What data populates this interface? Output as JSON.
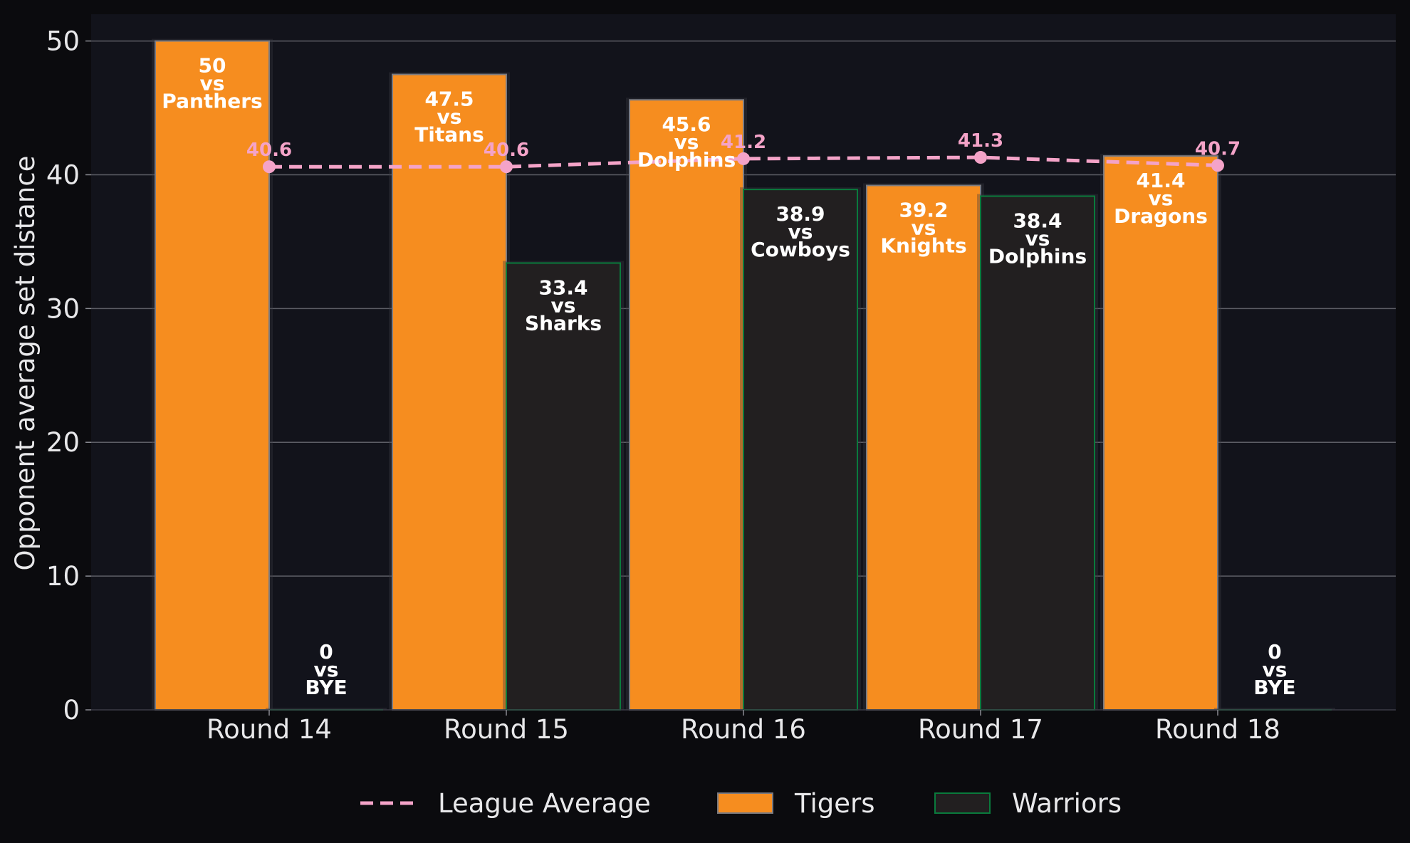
{
  "chart_data": {
    "type": "bar",
    "title": "",
    "xlabel": "",
    "ylabel": "Opponent average set distance",
    "ylim": [
      0,
      52
    ],
    "yticks": [
      0,
      10,
      20,
      30,
      40,
      50
    ],
    "categories": [
      "Round 14",
      "Round 15",
      "Round 16",
      "Round 17",
      "Round 18"
    ],
    "series": [
      {
        "name": "Tigers",
        "color": "#f68d1f",
        "edge": "#7a7a80",
        "values": [
          50,
          47.5,
          45.6,
          39.2,
          41.4
        ],
        "opponents": [
          "Panthers",
          "Titans",
          "Dolphins",
          "Knights",
          "Dragons"
        ]
      },
      {
        "name": "Warriors",
        "color": "#221f20",
        "edge": "#0a7a3c",
        "values": [
          0,
          33.4,
          38.9,
          38.4,
          0
        ],
        "opponents": [
          "BYE",
          "Sharks",
          "Cowboys",
          "Dolphins",
          "BYE"
        ]
      }
    ],
    "league_average": {
      "name": "League Average",
      "color": "#f4a3c8",
      "style": "dashed",
      "values": [
        40.6,
        40.6,
        41.2,
        41.3,
        40.7
      ]
    },
    "vs_word": "vs",
    "grid": true,
    "legend_position": "bottom-center"
  }
}
